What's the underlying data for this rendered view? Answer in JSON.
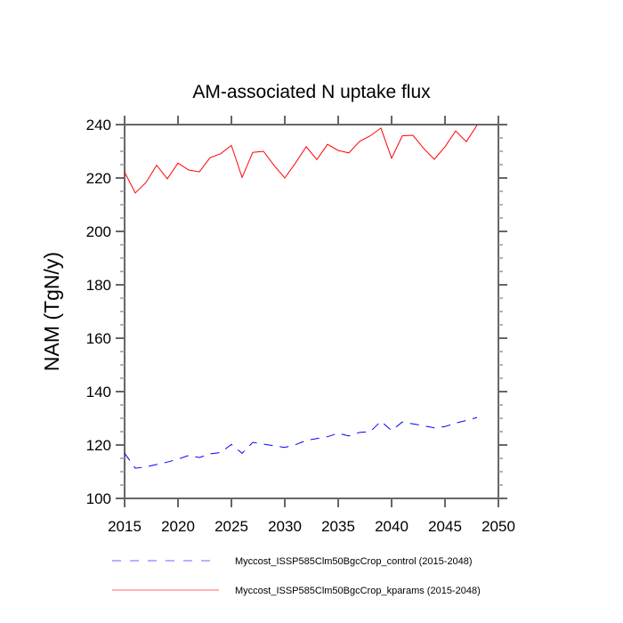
{
  "chart_data": {
    "type": "line",
    "title": "AM-associated N uptake flux",
    "xlabel": "",
    "ylabel": "NAM  (TgN/y)",
    "xlim": [
      2015,
      2050
    ],
    "ylim": [
      100,
      240
    ],
    "xticks": [
      2015,
      2020,
      2025,
      2030,
      2035,
      2040,
      2045,
      2050
    ],
    "yticks": [
      100,
      120,
      140,
      160,
      180,
      200,
      220,
      240
    ],
    "y_minor_step": 5,
    "grid": false,
    "legend_position": "bottom",
    "x": [
      2015,
      2016,
      2017,
      2018,
      2019,
      2020,
      2021,
      2022,
      2023,
      2024,
      2025,
      2026,
      2027,
      2028,
      2029,
      2030,
      2031,
      2032,
      2033,
      2034,
      2035,
      2036,
      2037,
      2038,
      2039,
      2040,
      2041,
      2042,
      2043,
      2044,
      2045,
      2046,
      2047,
      2048
    ],
    "series": [
      {
        "name": "Myccost_ISSP585Clm50BgcCrop_control (2015-2048)",
        "color": "#0000ff",
        "style": "dashed",
        "values": [
          116.9,
          111.3,
          111.8,
          112.7,
          113.6,
          114.7,
          116.1,
          115.3,
          116.7,
          117.2,
          120.2,
          116.9,
          121.0,
          120.3,
          119.7,
          119.1,
          120.1,
          121.7,
          122.4,
          123.1,
          124.4,
          123.4,
          124.7,
          125.0,
          128.9,
          125.4,
          128.6,
          127.9,
          127.2,
          126.4,
          126.9,
          128.2,
          129.2,
          130.3
        ]
      },
      {
        "name": "Myccost_ISSP585Clm50BgcCrop_kparams (2015-2048)",
        "color": "#ff0000",
        "style": "solid",
        "values": [
          222.2,
          214.4,
          218.3,
          224.8,
          219.7,
          225.6,
          223.0,
          222.3,
          227.6,
          229.1,
          232.2,
          220.2,
          229.6,
          230.0,
          224.7,
          220.0,
          225.6,
          231.7,
          226.9,
          232.6,
          230.3,
          229.4,
          233.7,
          235.8,
          238.7,
          227.4,
          235.8,
          236.0,
          231.1,
          227.0,
          231.7,
          237.6,
          233.6,
          239.8
        ]
      }
    ]
  }
}
